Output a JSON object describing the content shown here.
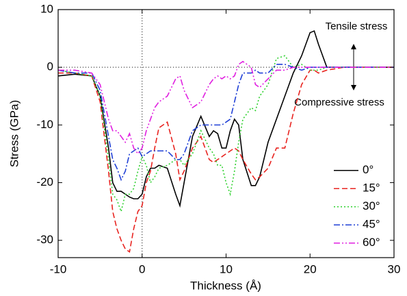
{
  "chart_data": {
    "type": "line",
    "x_label": "Thickness (Å)",
    "y_label": "Stress (GPa)",
    "annotations": [
      "Tensile stress",
      "Compressive stress"
    ],
    "xlim": [
      -10,
      30
    ],
    "xticks": [
      -10,
      0,
      10,
      20,
      30
    ],
    "ylim": [
      -33,
      10
    ],
    "yticks": [
      -30,
      -20,
      -10,
      0,
      10
    ],
    "reference_lines": {
      "x": 0,
      "y": 0
    },
    "legend": "lower right",
    "x": [
      -10,
      -8,
      -6,
      -5,
      -4,
      -3.5,
      -3,
      -2.5,
      -2,
      -1.5,
      -1,
      -0.5,
      0,
      0.5,
      1,
      1.5,
      2,
      3,
      4,
      4.5,
      5,
      6,
      7,
      8,
      8.5,
      9,
      9.5,
      10,
      10.5,
      11,
      11.5,
      12,
      13,
      13.5,
      14,
      15,
      16,
      17,
      18,
      19,
      20,
      20.5,
      21,
      22,
      24,
      27,
      30
    ],
    "series": [
      {
        "name": "0°",
        "color": "#000000",
        "dash": "solid",
        "values": [
          -1.5,
          -1.2,
          -1.5,
          -5,
          -14,
          -20,
          -21.5,
          -21.5,
          -22,
          -22.5,
          -22.8,
          -22.8,
          -22,
          -19,
          -17.5,
          -17.5,
          -17,
          -17.5,
          -22,
          -24,
          -20,
          -12,
          -8.5,
          -12,
          -11,
          -11.5,
          -14,
          -14,
          -11,
          -9,
          -10,
          -16,
          -20.5,
          -20.5,
          -19,
          -13,
          -9,
          -5,
          -1,
          2,
          6,
          6.3,
          4,
          0,
          0,
          0,
          0
        ]
      },
      {
        "name": "15°",
        "color": "#e8231f",
        "dash": "dashed",
        "values": [
          -1,
          -1,
          -1.5,
          -6,
          -18,
          -25,
          -28,
          -30,
          -31.5,
          -32,
          -28,
          -25,
          -24,
          -20,
          -18,
          -14,
          -10.5,
          -9.5,
          -15,
          -19.5,
          -18,
          -14,
          -12,
          -16,
          -16.5,
          -16,
          -15.5,
          -15,
          -14.5,
          -14,
          -14.5,
          -16,
          -18.5,
          -19.5,
          -19,
          -17.5,
          -14,
          -14,
          -8,
          -3,
          -0.5,
          -0.5,
          -1,
          -0.5,
          0,
          0,
          0
        ]
      },
      {
        "name": "30°",
        "color": "#2fd12f",
        "dash": "dotted",
        "values": [
          -0.5,
          -1,
          -1.5,
          -5,
          -16,
          -22,
          -23,
          -25,
          -22,
          -22,
          -21,
          -18,
          -15.5,
          -17,
          -20,
          -19,
          -17.5,
          -17,
          -16,
          -16,
          -17,
          -15,
          -11,
          -14,
          -15,
          -17,
          -17,
          -20,
          -22,
          -18,
          -13,
          -9,
          -7,
          -7.5,
          -5,
          -3,
          1.5,
          2,
          0,
          0.5,
          -0.5,
          -0.5,
          -0.5,
          0,
          0,
          0,
          0
        ]
      },
      {
        "name": "45°",
        "color": "#1f3fd6",
        "dash": "dashdot",
        "values": [
          -0.5,
          -1,
          -1,
          -4,
          -12,
          -16,
          -17.5,
          -19.5,
          -18,
          -15,
          -14.5,
          -14,
          -15.5,
          -15,
          -14.5,
          -14.5,
          -14.5,
          -14.5,
          -16,
          -16,
          -15,
          -11,
          -10,
          -10,
          -10,
          -10,
          -10,
          -9.5,
          -9,
          -6,
          -3,
          -1,
          -1,
          -0.5,
          -1,
          -1,
          0.5,
          0.5,
          0,
          -0.5,
          0,
          0,
          0,
          0,
          0,
          0,
          0
        ]
      },
      {
        "name": "60°",
        "color": "#e01fe0",
        "dash": "dashdotdot",
        "values": [
          -0.5,
          -0.5,
          -1,
          -3,
          -9,
          -11,
          -11,
          -12,
          -13,
          -11.5,
          -14,
          -15,
          -14,
          -11,
          -9,
          -7,
          -6,
          -5,
          -2,
          -1.5,
          -4,
          -7,
          -6,
          -3,
          -2,
          -1.5,
          -2,
          -1.5,
          -2,
          -1.5,
          0.5,
          1,
          0,
          -3,
          -3.5,
          -2,
          -0.5,
          -0.5,
          0,
          0,
          0,
          0,
          0,
          0,
          0,
          0,
          0
        ]
      }
    ]
  }
}
